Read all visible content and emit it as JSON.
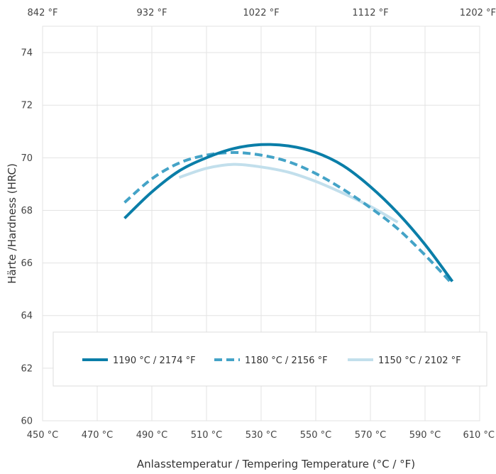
{
  "chart_data": {
    "type": "line",
    "xlabel": "Anlasstemperatur / Tempering Temperature (°C / °F)",
    "ylabel": "Härte /Hardness (HRC)",
    "xlim": [
      450,
      610
    ],
    "ylim": [
      60,
      75
    ],
    "x_ticks": [
      450,
      470,
      490,
      510,
      530,
      550,
      570,
      590,
      610
    ],
    "x_tick_labels": [
      "450 °C",
      "470 °C",
      "490 °C",
      "510 °C",
      "530 °C",
      "550 °C",
      "570 °C",
      "590 °C",
      "610 °C"
    ],
    "top_ticks": [
      450,
      500,
      550,
      600,
      650
    ],
    "top_tick_labels": [
      "842 °F",
      "932 °F",
      "1022 °F",
      "1112 °F",
      "1202 °F"
    ],
    "y_ticks": [
      60,
      62,
      64,
      66,
      68,
      70,
      72,
      74
    ],
    "y_tick_labels": [
      "60",
      "62",
      "64",
      "66",
      "68",
      "70",
      "72",
      "74"
    ],
    "grid": true,
    "legend_position": "bottom",
    "series": [
      {
        "name": "1190 °C / 2174 °F",
        "color": "#0a7ea8",
        "style": "solid",
        "x": [
          480,
          490,
          500,
          510,
          520,
          530,
          540,
          550,
          560,
          570,
          580,
          590,
          600
        ],
        "y": [
          67.7,
          68.7,
          69.5,
          70.0,
          70.35,
          70.5,
          70.45,
          70.2,
          69.7,
          68.9,
          67.9,
          66.7,
          65.3
        ]
      },
      {
        "name": "1180 °C / 2156 °F",
        "color": "#44a3c7",
        "style": "dashed",
        "x": [
          480,
          490,
          500,
          510,
          520,
          530,
          540,
          550,
          560,
          570,
          580,
          590,
          600
        ],
        "y": [
          68.3,
          69.2,
          69.8,
          70.1,
          70.2,
          70.1,
          69.85,
          69.4,
          68.8,
          68.1,
          67.3,
          66.3,
          65.2
        ]
      },
      {
        "name": "1150 °C / 2102 °F",
        "color": "#c2dfec",
        "style": "solid",
        "x": [
          500,
          510,
          520,
          530,
          540,
          550,
          560,
          570,
          580
        ],
        "y": [
          69.25,
          69.6,
          69.75,
          69.65,
          69.45,
          69.1,
          68.65,
          68.15,
          67.55
        ]
      }
    ]
  }
}
